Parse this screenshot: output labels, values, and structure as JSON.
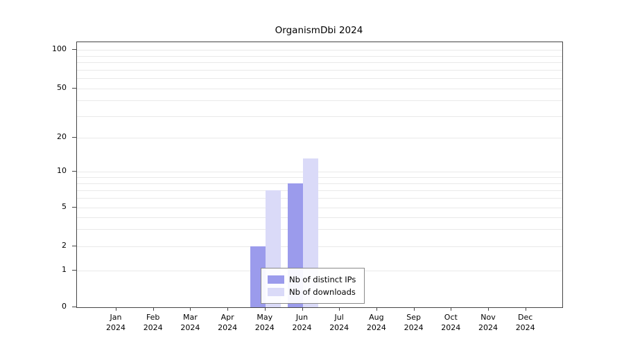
{
  "chart_data": {
    "type": "bar",
    "title": "OrganismDbi 2024",
    "year_label": "2024",
    "categories": [
      "Jan",
      "Feb",
      "Mar",
      "Apr",
      "May",
      "Jun",
      "Jul",
      "Aug",
      "Sep",
      "Oct",
      "Nov",
      "Dec"
    ],
    "series": [
      {
        "name": "Nb of distinct IPs",
        "color": "#9b9bec",
        "values": [
          0,
          0,
          0,
          0,
          2,
          8,
          0,
          0,
          0,
          0,
          0,
          0
        ]
      },
      {
        "name": "Nb of downloads",
        "color": "#dadaf8",
        "values": [
          0,
          0,
          0,
          0,
          7,
          13,
          0,
          0,
          0,
          0,
          0,
          0
        ]
      }
    ],
    "y_ticks": [
      0,
      1,
      2,
      5,
      10,
      20,
      50,
      100
    ],
    "ylim": [
      0,
      100
    ],
    "y_scale": "log-like",
    "grid": true,
    "legend_position": "inside-bottom-center"
  },
  "colors": {
    "grid": "#e9e9e9",
    "axis": "#444444",
    "background": "#ffffff",
    "legend_border": "#8a8a8a"
  }
}
